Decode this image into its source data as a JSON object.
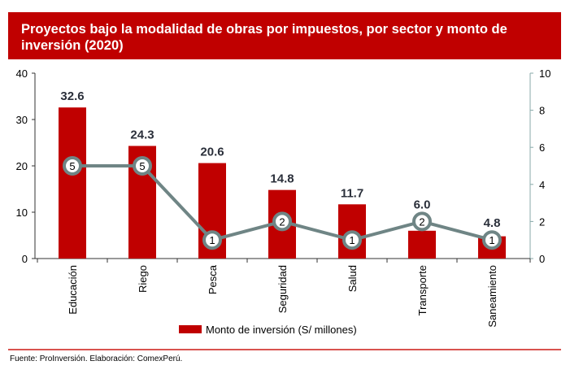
{
  "chart_data": {
    "type": "bar+line",
    "title": "Proyectos bajo la modalidad de obras por impuestos, por sector y monto de inversión (2020)",
    "categories": [
      "Educación",
      "Riego",
      "Pesca",
      "Seguridad",
      "Salud",
      "Transporte",
      "Saneamiento"
    ],
    "series": [
      {
        "name": "Monto de inversión (S/ millones)",
        "type": "bar",
        "axis": "left",
        "values": [
          32.6,
          24.3,
          20.6,
          14.8,
          11.7,
          6.0,
          4.8
        ],
        "color": "#c00000"
      },
      {
        "type": "line",
        "axis": "right",
        "values": [
          5,
          5,
          1,
          2,
          1,
          2,
          1
        ],
        "color": "#6f8585"
      }
    ],
    "ylim_left": [
      0,
      40
    ],
    "yticks_left": [
      0,
      10,
      20,
      30,
      40
    ],
    "ylim_right": [
      0,
      10
    ],
    "yticks_right": [
      0,
      2,
      4,
      6,
      8,
      10
    ],
    "legend": "bottom",
    "grid": false
  },
  "source": "Fuente:  ProInversión. Elaboración: ComexPerú."
}
